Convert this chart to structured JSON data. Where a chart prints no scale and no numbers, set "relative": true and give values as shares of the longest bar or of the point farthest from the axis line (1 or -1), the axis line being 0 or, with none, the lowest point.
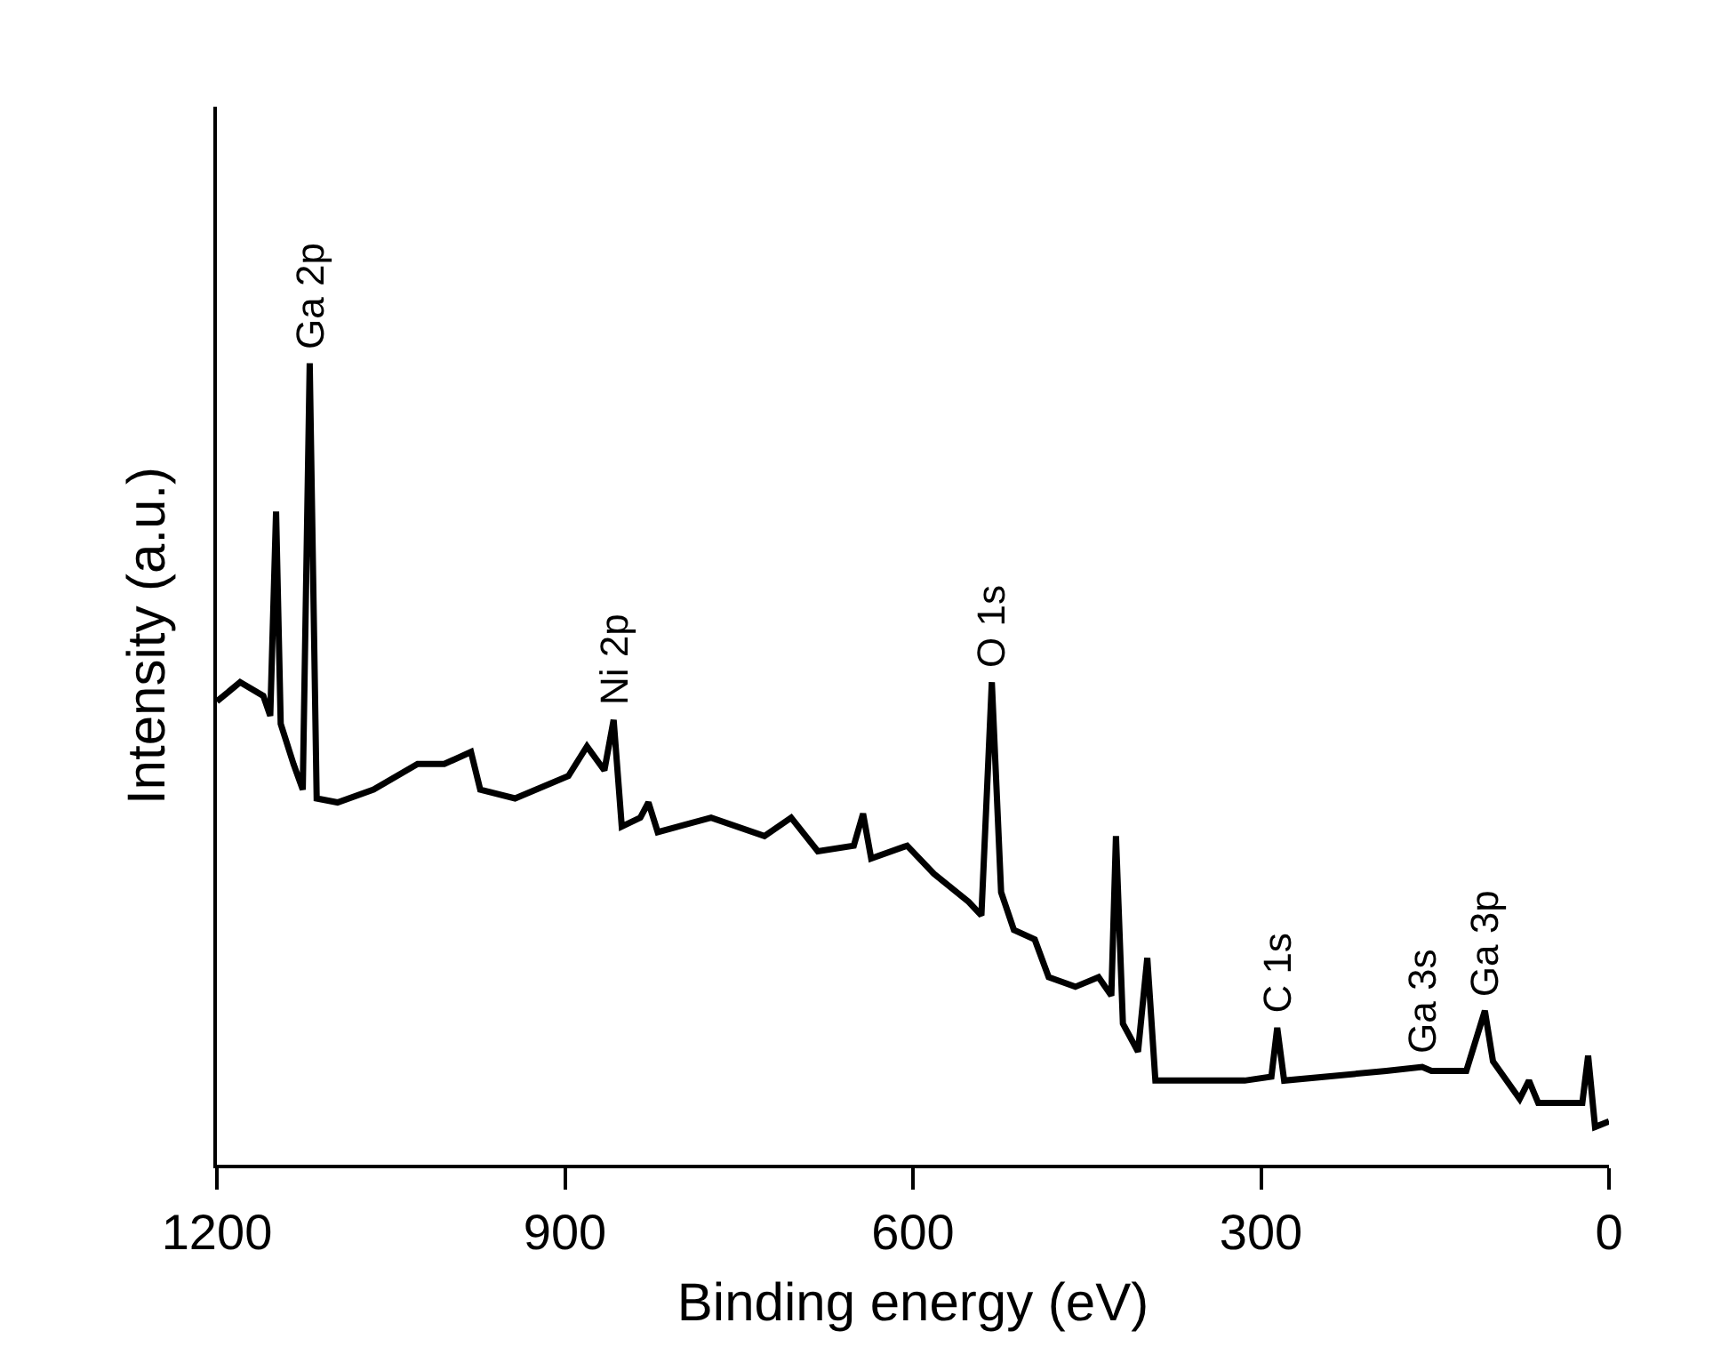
{
  "chart_data": {
    "type": "line",
    "xlabel": "Binding energy (eV)",
    "ylabel": "Intensity (a.u.)",
    "relative": true,
    "tick_labels": "x",
    "grid": false,
    "marker": "none",
    "line_style": "solid",
    "xlim": [
      1200,
      0
    ],
    "xticks": [
      1200,
      900,
      600,
      300,
      0
    ],
    "annotations": [
      {
        "text": "Ga 2p",
        "x": 1120,
        "y": 1.0
      },
      {
        "text": "Ni 2p",
        "x": 858,
        "y": 0.555
      },
      {
        "text": "O 1s",
        "x": 532,
        "y": 0.602
      },
      {
        "text": "C 1s",
        "x": 286,
        "y": 0.171
      },
      {
        "text": "Ga 3s",
        "x": 161,
        "y": 0.122
      },
      {
        "text": "Ga 3p",
        "x": 107,
        "y": 0.192
      }
    ],
    "series": [
      {
        "color": "#000000",
        "x": [
          1200,
          1180,
          1160,
          1154,
          1149,
          1145,
          1134,
          1126,
          1120,
          1114,
          1096,
          1065,
          1027,
          1004,
          981,
          973,
          943,
          897,
          881,
          866,
          858,
          851,
          835,
          828,
          820,
          774,
          728,
          705,
          682,
          651,
          643,
          636,
          605,
          582,
          552,
          541,
          532,
          524,
          513,
          495,
          483,
          460,
          440,
          429,
          425,
          419,
          406,
          398,
          391,
          314,
          291,
          286,
          280,
          192,
          161,
          153,
          123,
          107,
          100,
          77,
          69,
          61,
          23,
          18,
          12,
          0
        ],
        "values": [
          0.578,
          0.602,
          0.585,
          0.56,
          0.815,
          0.55,
          0.5,
          0.468,
          1.0,
          0.457,
          0.452,
          0.468,
          0.5,
          0.5,
          0.515,
          0.468,
          0.457,
          0.485,
          0.522,
          0.492,
          0.555,
          0.422,
          0.433,
          0.452,
          0.415,
          0.433,
          0.41,
          0.433,
          0.391,
          0.398,
          0.438,
          0.382,
          0.398,
          0.363,
          0.328,
          0.311,
          0.602,
          0.34,
          0.293,
          0.281,
          0.234,
          0.222,
          0.234,
          0.211,
          0.41,
          0.176,
          0.141,
          0.258,
          0.105,
          0.105,
          0.11,
          0.171,
          0.105,
          0.117,
          0.122,
          0.117,
          0.117,
          0.192,
          0.129,
          0.082,
          0.105,
          0.077,
          0.077,
          0.136,
          0.047,
          0.054
        ]
      }
    ]
  }
}
